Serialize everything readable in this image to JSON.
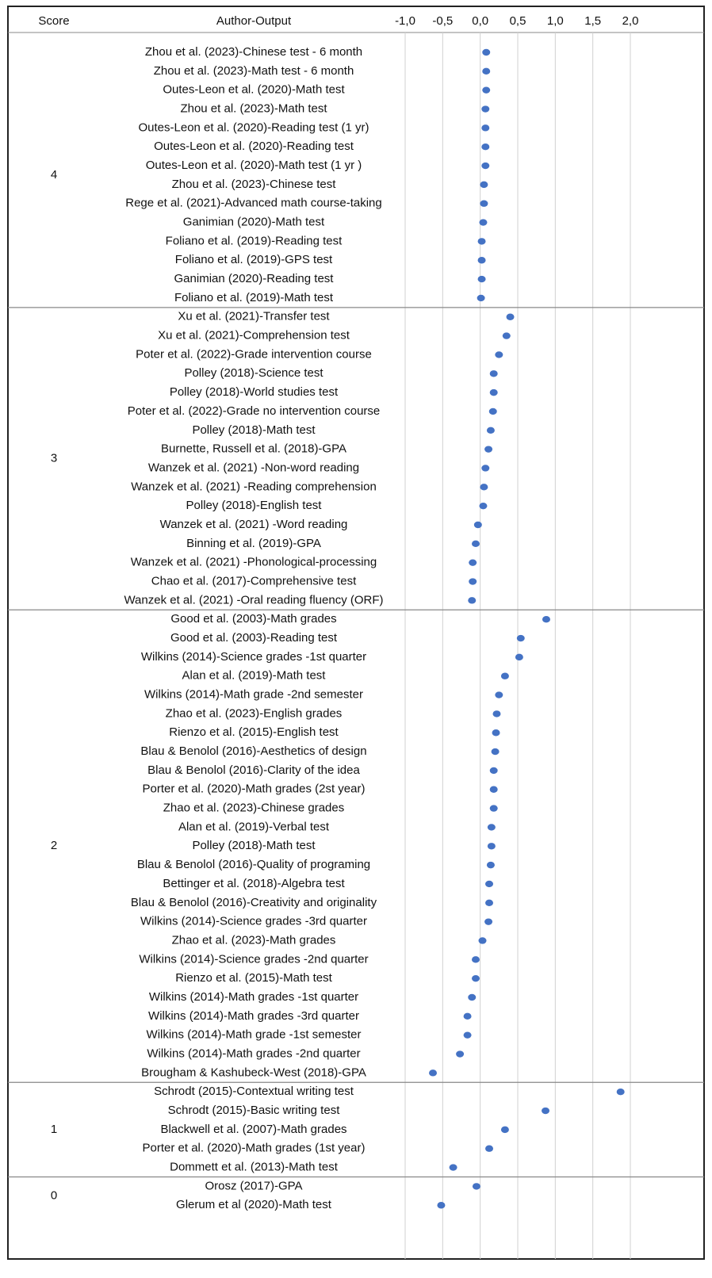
{
  "chart_data": {
    "type": "dot",
    "score_header": "Score",
    "label_header": "Author-Output",
    "xlim": [
      -1.0,
      2.0
    ],
    "xticks": [
      {
        "value": -1.0,
        "label": "-1,0"
      },
      {
        "value": -0.5,
        "label": "-0,5"
      },
      {
        "value": 0.0,
        "label": "0,0"
      },
      {
        "value": 0.5,
        "label": "0,5"
      },
      {
        "value": 1.0,
        "label": "1,0"
      },
      {
        "value": 1.5,
        "label": "1,5"
      },
      {
        "value": 2.0,
        "label": "2,0"
      }
    ],
    "grid": true,
    "color": "#4472c4",
    "groups": [
      {
        "score": 4,
        "labels": [
          "Zhou et al. (2023)-Chinese test - 6 month",
          "Zhou et al. (2023)-Math test - 6 month",
          "Outes-Leon et al. (2020)-Math test",
          "Zhou et al. (2023)-Math test",
          "Outes-Leon et al. (2020)-Reading test (1 yr)",
          "Outes-Leon et al. (2020)-Reading test",
          "Outes-Leon et al. (2020)-Math test (1 yr )",
          "Zhou et al. (2023)-Chinese test",
          "Rege et al. (2021)-Advanced math course-taking",
          "Ganimian (2020)-Math test",
          "Foliano et al. (2019)-Reading test",
          "Foliano et al. (2019)-GPS test",
          "Ganimian (2020)-Reading test",
          "Foliano et al. (2019)-Math test"
        ],
        "values": [
          0.08,
          0.08,
          0.08,
          0.07,
          0.07,
          0.07,
          0.07,
          0.05,
          0.05,
          0.04,
          0.02,
          0.02,
          0.02,
          0.01
        ]
      },
      {
        "score": 3,
        "labels": [
          "Xu et al. (2021)-Transfer test",
          "Xu et al. (2021)-Comprehension test",
          "Poter et al. (2022)-Grade intervention course",
          "Polley (2018)-Science test",
          "Polley (2018)-World studies test",
          "Poter et al. (2022)-Grade no intervention course",
          "Polley (2018)-Math test",
          "Burnette, Russell et al. (2018)-GPA",
          "Wanzek et al. (2021) -Non-word reading",
          "Wanzek et al. (2021) -Reading comprehension",
          "Polley (2018)-English test",
          "Wanzek et al. (2021) -Word reading",
          "Binning et al. (2019)-GPA",
          "Wanzek et al. (2021) -Phonological-processing",
          "Chao et al. (2017)-Comprehensive test",
          "Wanzek et al. (2021) -Oral reading fluency (ORF)"
        ],
        "values": [
          0.4,
          0.35,
          0.25,
          0.18,
          0.18,
          0.17,
          0.14,
          0.11,
          0.07,
          0.05,
          0.04,
          -0.03,
          -0.06,
          -0.1,
          -0.1,
          -0.11
        ]
      },
      {
        "score": 2,
        "labels": [
          "Good et al. (2003)-Math grades",
          "Good et al. (2003)-Reading test",
          "Wilkins (2014)-Science grades -1st quarter",
          "Alan et al. (2019)-Math test",
          "Wilkins (2014)-Math grade -2nd semester",
          "Zhao et al. (2023)-English grades",
          "Rienzo et al. (2015)-English test",
          "Blau & Benolol (2016)-Aesthetics of design",
          "Blau & Benolol (2016)-Clarity of the idea",
          "Porter et al. (2020)-Math grades (2st year)",
          "Zhao et al. (2023)-Chinese grades",
          "Alan et al. (2019)-Verbal test",
          "Polley (2018)-Math test",
          "Blau & Benolol (2016)-Quality of programing",
          "Bettinger et al. (2018)-Algebra test",
          "Blau & Benolol (2016)-Creativity and originality",
          "Wilkins (2014)-Science grades -3rd quarter",
          "Zhao et al. (2023)-Math grades",
          "Wilkins (2014)-Science grades -2nd quarter",
          "Rienzo et al. (2015)-Math test",
          "Wilkins (2014)-Math grades -1st quarter",
          "Wilkins (2014)-Math grades -3rd quarter",
          "Wilkins (2014)-Math grade -1st semester",
          "Wilkins (2014)-Math grades -2nd quarter",
          "Brougham & Kashubeck-West (2018)-GPA"
        ],
        "values": [
          0.88,
          0.54,
          0.52,
          0.33,
          0.25,
          0.22,
          0.21,
          0.2,
          0.18,
          0.18,
          0.18,
          0.15,
          0.15,
          0.14,
          0.12,
          0.12,
          0.11,
          0.03,
          -0.06,
          -0.06,
          -0.11,
          -0.17,
          -0.17,
          -0.27,
          -0.63
        ]
      },
      {
        "score": 1,
        "labels": [
          "Schrodt (2015)-Contextual writing test",
          "Schrodt (2015)-Basic writing test",
          "Blackwell et al. (2007)-Math grades",
          "Porter et al. (2020)-Math grades (1st year)",
          "Dommett et al. (2013)-Math test"
        ],
        "values": [
          1.87,
          0.87,
          0.33,
          0.12,
          -0.36
        ]
      },
      {
        "score": 0,
        "labels": [
          "Orosz (2017)-GPA",
          "Glerum et al (2020)-Math test"
        ],
        "values": [
          -0.05,
          -0.52
        ]
      }
    ]
  }
}
